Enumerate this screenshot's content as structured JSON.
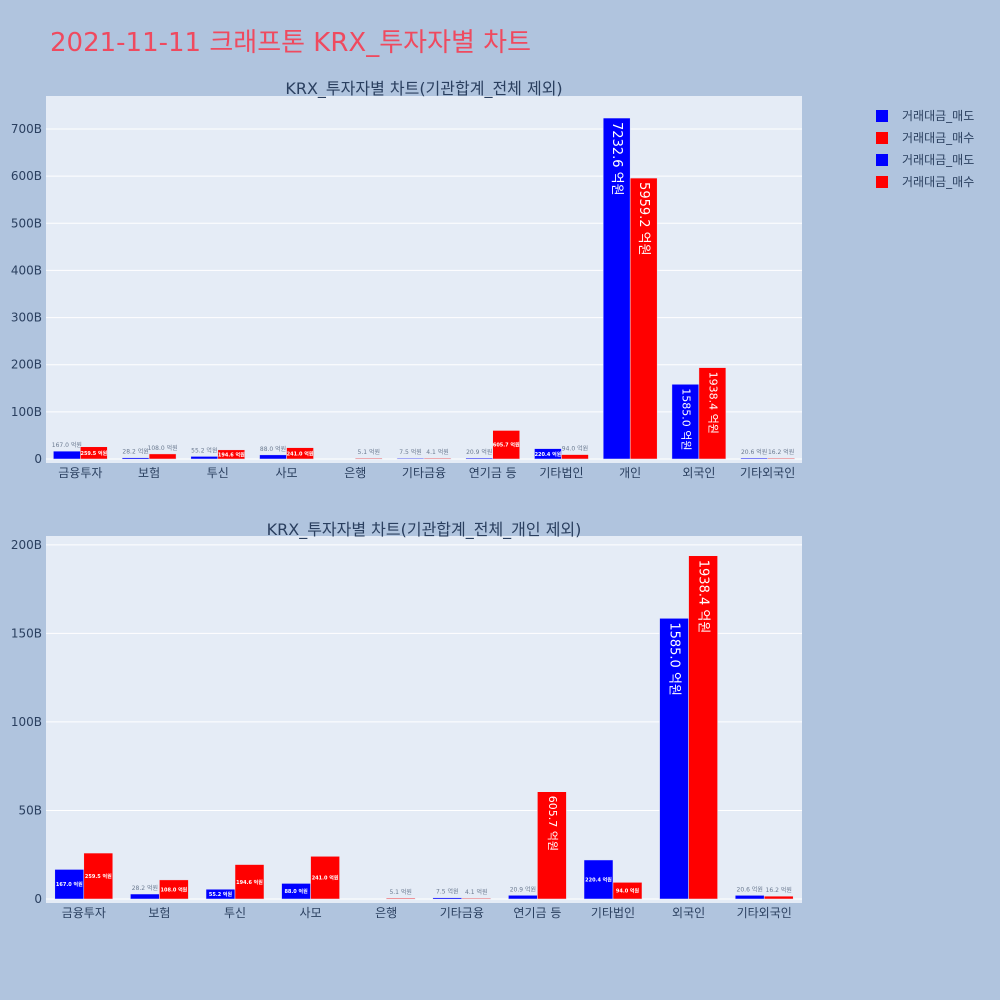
{
  "page_title": "2021-11-11 크래프톤 KRX_투자자별 차트",
  "legend": [
    {
      "label": "거래대금_매도",
      "color": "#0000ff"
    },
    {
      "label": "거래대금_매수",
      "color": "#ff0000"
    },
    {
      "label": "거래대금_매도",
      "color": "#0000ff"
    },
    {
      "label": "거래대금_매수",
      "color": "#ff0000"
    }
  ],
  "chart_data": [
    {
      "type": "bar",
      "title": "KRX_투자자별 차트(기관합계_전체 제외)",
      "categories": [
        "금융투자",
        "보험",
        "투신",
        "사모",
        "은행",
        "기타금융",
        "연기금 등",
        "기타법인",
        "개인",
        "외국인",
        "기타외국인"
      ],
      "ylim": [
        0,
        770
      ],
      "y_ticks": [
        0,
        100,
        200,
        300,
        400,
        500,
        600,
        700
      ],
      "y_tick_labels": [
        "0",
        "100B",
        "200B",
        "300B",
        "400B",
        "500B",
        "600B",
        "700B"
      ],
      "series": [
        {
          "name": "거래대금_매도",
          "color": "#0000ff",
          "values": [
            16.7,
            2.82,
            5.52,
            8.8,
            0,
            0.75,
            2.09,
            22.04,
            723.26,
            158.5,
            2.06
          ],
          "labels": [
            "167.0 억원",
            "28.2 억원",
            "55.2 억원",
            "88.0 억원",
            "",
            "7.5 억원",
            "20.9 억원",
            "220.4 억원",
            "7232.6 억원",
            "1585.0 억원",
            "20.6 억원"
          ]
        },
        {
          "name": "거래대금_매수",
          "color": "#ff0000",
          "values": [
            25.95,
            10.8,
            19.46,
            24.1,
            0.51,
            0.41,
            60.57,
            9.4,
            595.92,
            193.84,
            1.62
          ],
          "labels": [
            "259.5 억원",
            "108.0 억원",
            "194.6 억원",
            "241.0 억원",
            "5.1 억원",
            "4.1 억원",
            "605.7 억원",
            "94.0 억원",
            "5959.2 억원",
            "1938.4 억원",
            "16.2 억원"
          ]
        }
      ]
    },
    {
      "type": "bar",
      "title": "KRX_투자자별 차트(기관합계_전체_개인 제외)",
      "categories": [
        "금융투자",
        "보험",
        "투신",
        "사모",
        "은행",
        "기타금융",
        "연기금 등",
        "기타법인",
        "외국인",
        "기타외국인"
      ],
      "ylim": [
        0,
        205
      ],
      "y_ticks": [
        0,
        50,
        100,
        150,
        200
      ],
      "y_tick_labels": [
        "0",
        "50B",
        "100B",
        "150B",
        "200B"
      ],
      "series": [
        {
          "name": "거래대금_매도",
          "color": "#0000ff",
          "values": [
            16.7,
            2.82,
            5.52,
            8.8,
            0,
            0.75,
            2.09,
            22.04,
            158.5,
            2.06
          ],
          "labels": [
            "167.0 억원",
            "28.2 억원",
            "55.2 억원",
            "88.0 억원",
            "",
            "7.5 억원",
            "20.9 억원",
            "220.4 억원",
            "1585.0 억원",
            "20.6 억원"
          ]
        },
        {
          "name": "거래대금_매수",
          "color": "#ff0000",
          "values": [
            25.95,
            10.8,
            19.46,
            24.1,
            0.51,
            0.41,
            60.57,
            9.4,
            193.84,
            1.62
          ],
          "labels": [
            "259.5 억원",
            "108.0 억원",
            "194.6 억원",
            "241.0 억원",
            "5.1 억원",
            "4.1 억원",
            "605.7 억원",
            "94.0 억원",
            "1938.4 억원",
            "16.2 억원"
          ]
        }
      ]
    }
  ]
}
